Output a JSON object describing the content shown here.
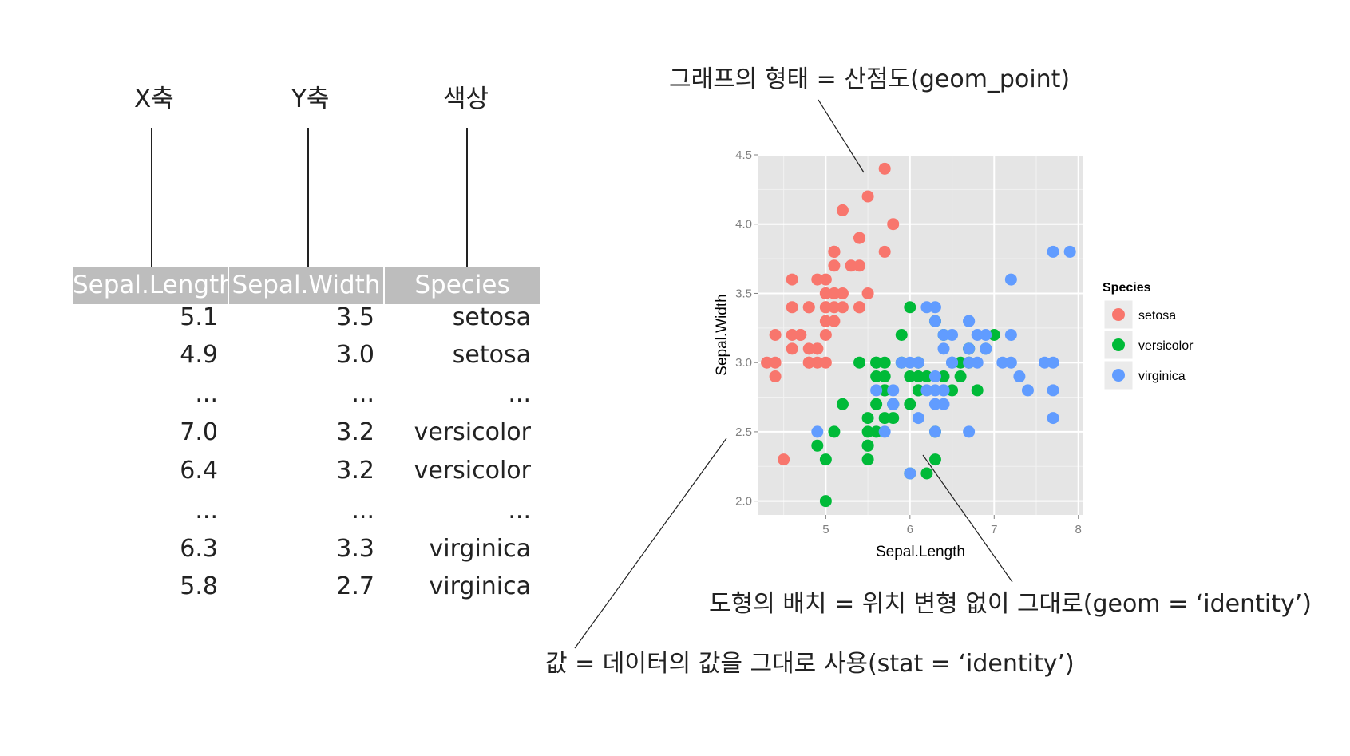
{
  "mapping_labels": {
    "x": "X축",
    "y": "Y축",
    "color": "색상"
  },
  "table": {
    "headers": [
      "Sepal.Length",
      "Sepal.Width",
      "Species"
    ],
    "rows": [
      [
        "5.1",
        "3.5",
        "setosa"
      ],
      [
        "4.9",
        "3.0",
        "setosa"
      ],
      [
        "...",
        "...",
        "..."
      ],
      [
        "7.0",
        "3.2",
        "versicolor"
      ],
      [
        "6.4",
        "3.2",
        "versicolor"
      ],
      [
        "...",
        "...",
        "..."
      ],
      [
        "6.3",
        "3.3",
        "virginica"
      ],
      [
        "5.8",
        "2.7",
        "virginica"
      ]
    ]
  },
  "annotations": {
    "geom": "그래프의 형태 = 산점도(geom_point)",
    "position": "도형의 배치 = 위치 변형 없이 그대로(geom = ‘identity’)",
    "stat": "값 = 데이터의 값을 그대로 사용(stat = ‘identity’)"
  },
  "chart_data": {
    "type": "scatter",
    "xlabel": "Sepal.Length",
    "ylabel": "Sepal.Width",
    "xlim": [
      4.2,
      8.05
    ],
    "ylim": [
      1.9,
      4.5
    ],
    "x_ticks": [
      "5",
      "6",
      "7",
      "8"
    ],
    "y_ticks": [
      "2.0",
      "2.5",
      "3.0",
      "3.5",
      "4.0",
      "4.5"
    ],
    "legend_title": "Species",
    "legend_position": "right",
    "series": [
      {
        "name": "setosa",
        "color": "#F8766D",
        "points": [
          [
            5.1,
            3.5
          ],
          [
            4.9,
            3.0
          ],
          [
            4.7,
            3.2
          ],
          [
            4.6,
            3.1
          ],
          [
            5.0,
            3.6
          ],
          [
            5.4,
            3.9
          ],
          [
            4.6,
            3.4
          ],
          [
            5.0,
            3.4
          ],
          [
            4.4,
            2.9
          ],
          [
            4.9,
            3.1
          ],
          [
            5.4,
            3.7
          ],
          [
            4.8,
            3.4
          ],
          [
            4.8,
            3.0
          ],
          [
            4.3,
            3.0
          ],
          [
            5.8,
            4.0
          ],
          [
            5.7,
            4.4
          ],
          [
            5.4,
            3.9
          ],
          [
            5.1,
            3.5
          ],
          [
            5.7,
            3.8
          ],
          [
            5.1,
            3.8
          ],
          [
            5.4,
            3.4
          ],
          [
            5.1,
            3.7
          ],
          [
            4.6,
            3.6
          ],
          [
            5.1,
            3.3
          ],
          [
            4.8,
            3.4
          ],
          [
            5.0,
            3.0
          ],
          [
            5.0,
            3.4
          ],
          [
            5.2,
            3.5
          ],
          [
            5.2,
            3.4
          ],
          [
            4.7,
            3.2
          ],
          [
            4.8,
            3.1
          ],
          [
            5.4,
            3.4
          ],
          [
            5.2,
            4.1
          ],
          [
            5.5,
            4.2
          ],
          [
            4.9,
            3.1
          ],
          [
            5.0,
            3.2
          ],
          [
            5.5,
            3.5
          ],
          [
            4.9,
            3.6
          ],
          [
            4.4,
            3.0
          ],
          [
            5.1,
            3.4
          ],
          [
            5.0,
            3.5
          ],
          [
            4.5,
            2.3
          ],
          [
            4.4,
            3.2
          ],
          [
            5.0,
            3.5
          ],
          [
            5.1,
            3.8
          ],
          [
            4.8,
            3.0
          ],
          [
            5.1,
            3.8
          ],
          [
            4.6,
            3.2
          ],
          [
            5.3,
            3.7
          ],
          [
            5.0,
            3.3
          ]
        ]
      },
      {
        "name": "versicolor",
        "color": "#00BA38",
        "points": [
          [
            7.0,
            3.2
          ],
          [
            6.4,
            3.2
          ],
          [
            6.9,
            3.1
          ],
          [
            5.5,
            2.3
          ],
          [
            6.5,
            2.8
          ],
          [
            5.7,
            2.8
          ],
          [
            6.3,
            3.3
          ],
          [
            4.9,
            2.4
          ],
          [
            6.6,
            2.9
          ],
          [
            5.2,
            2.7
          ],
          [
            5.0,
            2.0
          ],
          [
            5.9,
            3.0
          ],
          [
            6.0,
            2.2
          ],
          [
            6.1,
            2.9
          ],
          [
            5.6,
            2.9
          ],
          [
            6.7,
            3.1
          ],
          [
            5.6,
            3.0
          ],
          [
            5.8,
            2.7
          ],
          [
            6.2,
            2.2
          ],
          [
            5.6,
            2.5
          ],
          [
            5.9,
            3.2
          ],
          [
            6.1,
            2.8
          ],
          [
            6.3,
            2.5
          ],
          [
            6.1,
            2.8
          ],
          [
            6.4,
            2.9
          ],
          [
            6.6,
            3.0
          ],
          [
            6.8,
            2.8
          ],
          [
            6.7,
            3.0
          ],
          [
            6.0,
            2.9
          ],
          [
            5.7,
            2.6
          ],
          [
            5.5,
            2.4
          ],
          [
            5.5,
            2.4
          ],
          [
            5.8,
            2.7
          ],
          [
            6.0,
            2.7
          ],
          [
            5.4,
            3.0
          ],
          [
            6.0,
            3.4
          ],
          [
            6.7,
            3.1
          ],
          [
            6.3,
            2.3
          ],
          [
            5.6,
            3.0
          ],
          [
            5.5,
            2.5
          ],
          [
            5.5,
            2.6
          ],
          [
            6.1,
            3.0
          ],
          [
            5.8,
            2.6
          ],
          [
            5.0,
            2.3
          ],
          [
            5.6,
            2.7
          ],
          [
            5.7,
            3.0
          ],
          [
            5.7,
            2.9
          ],
          [
            6.2,
            2.9
          ],
          [
            5.1,
            2.5
          ],
          [
            5.7,
            2.8
          ]
        ]
      },
      {
        "name": "virginica",
        "color": "#619CFF",
        "points": [
          [
            6.3,
            3.3
          ],
          [
            5.8,
            2.7
          ],
          [
            7.1,
            3.0
          ],
          [
            6.3,
            2.9
          ],
          [
            6.5,
            3.0
          ],
          [
            7.6,
            3.0
          ],
          [
            4.9,
            2.5
          ],
          [
            7.3,
            2.9
          ],
          [
            6.7,
            2.5
          ],
          [
            7.2,
            3.6
          ],
          [
            6.5,
            3.2
          ],
          [
            6.4,
            2.7
          ],
          [
            6.8,
            3.0
          ],
          [
            5.7,
            2.5
          ],
          [
            5.8,
            2.8
          ],
          [
            6.4,
            3.2
          ],
          [
            6.5,
            3.0
          ],
          [
            7.7,
            3.8
          ],
          [
            7.7,
            2.6
          ],
          [
            6.0,
            2.2
          ],
          [
            6.9,
            3.2
          ],
          [
            5.6,
            2.8
          ],
          [
            7.7,
            2.8
          ],
          [
            6.3,
            2.7
          ],
          [
            6.7,
            3.3
          ],
          [
            7.2,
            3.2
          ],
          [
            6.2,
            2.8
          ],
          [
            6.1,
            3.0
          ],
          [
            6.4,
            2.8
          ],
          [
            7.2,
            3.0
          ],
          [
            7.4,
            2.8
          ],
          [
            7.9,
            3.8
          ],
          [
            6.4,
            2.8
          ],
          [
            6.3,
            2.8
          ],
          [
            6.1,
            2.6
          ],
          [
            7.7,
            3.0
          ],
          [
            6.3,
            3.4
          ],
          [
            6.4,
            3.1
          ],
          [
            6.0,
            3.0
          ],
          [
            6.9,
            3.1
          ],
          [
            6.7,
            3.1
          ],
          [
            6.9,
            3.1
          ],
          [
            5.8,
            2.7
          ],
          [
            6.8,
            3.2
          ],
          [
            6.7,
            3.3
          ],
          [
            6.7,
            3.0
          ],
          [
            6.3,
            2.5
          ],
          [
            6.5,
            3.0
          ],
          [
            6.2,
            3.4
          ],
          [
            5.9,
            3.0
          ]
        ]
      }
    ]
  }
}
